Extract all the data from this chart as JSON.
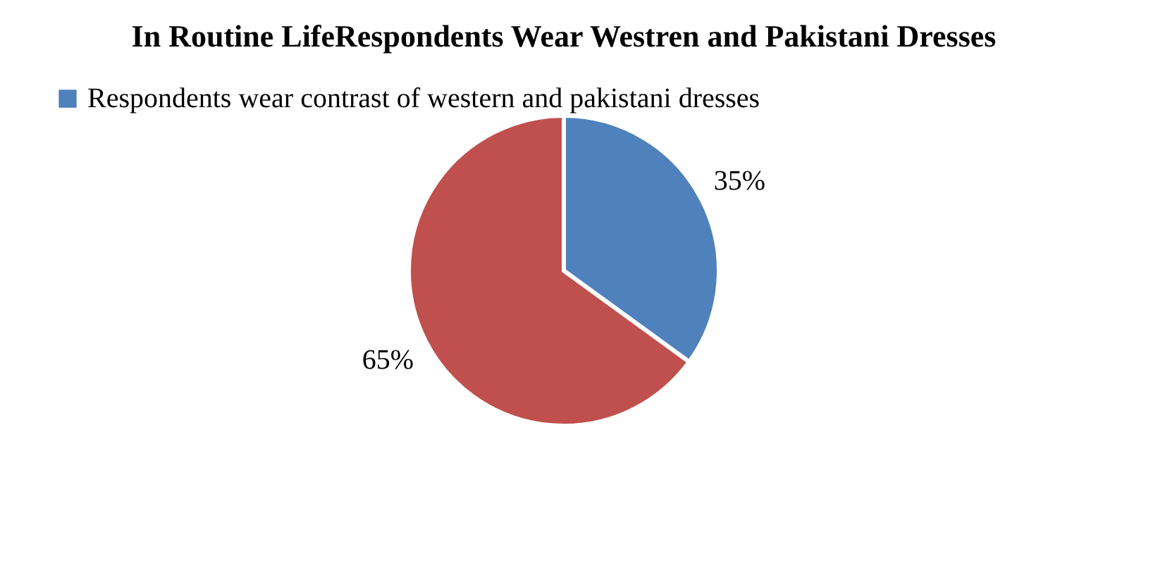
{
  "chart_data": {
    "type": "pie",
    "title": "In Routine LifeRespondents Wear Westren and Pakistani Dresses",
    "categories": [
      "Respondents wear contrast of western and pakistani dresses",
      null
    ],
    "values": [
      35,
      65
    ],
    "colors": [
      "#4f81bd",
      "#c0504d"
    ],
    "value_labels": [
      "35%",
      "65%"
    ],
    "legend": "top left"
  }
}
